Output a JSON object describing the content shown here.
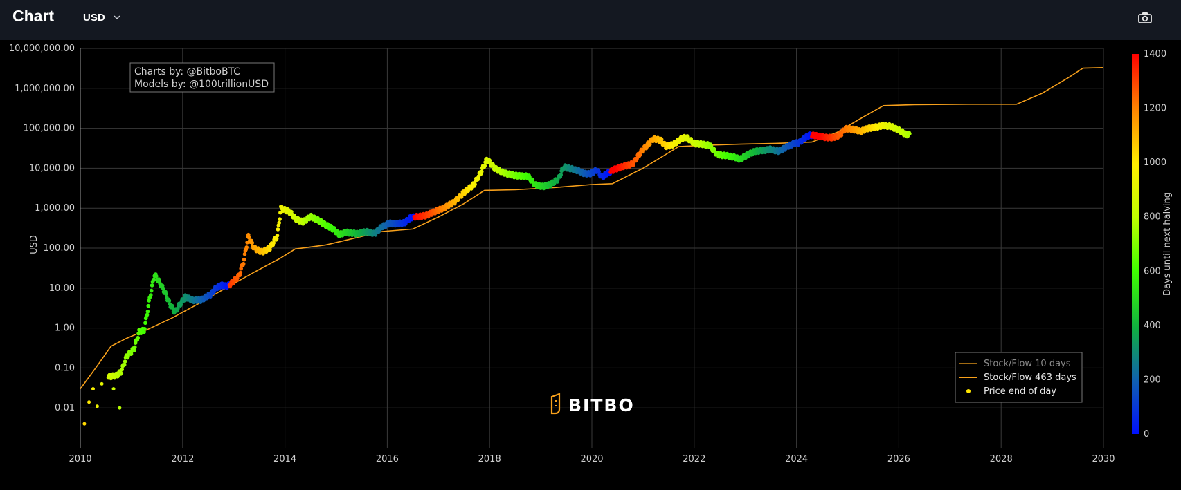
{
  "header": {
    "title": "Chart",
    "currency": "USD",
    "icons": {
      "currency_dropdown": "chevron-down-icon",
      "screenshot": "camera-icon"
    }
  },
  "credits": {
    "line1": "Charts by: @BitboBTC",
    "line2": "Models by: @100trillionUSD"
  },
  "watermark": "BITBO",
  "colors": {
    "background": "#000000",
    "header": "#141821",
    "grid": "#3a3a3a",
    "model_line": "#f7a01b",
    "sf10_line": "#a06a12",
    "marker_yellow": "#ffe600"
  },
  "chart_data": {
    "type": "scatter",
    "ylabel": "USD",
    "xlabel": "",
    "y_scale": "log",
    "ylim": [
      0.001,
      10000000
    ],
    "xlim": [
      2010,
      2030
    ],
    "x_ticks": [
      "2010",
      "2012",
      "2014",
      "2016",
      "2018",
      "2020",
      "2022",
      "2024",
      "2026",
      "2028",
      "2030"
    ],
    "y_ticks": [
      {
        "value": 10000000,
        "label": "10,000,000.00"
      },
      {
        "value": 1000000,
        "label": "1,000,000.00"
      },
      {
        "value": 100000,
        "label": "100,000.00"
      },
      {
        "value": 10000,
        "label": "10,000.00"
      },
      {
        "value": 1000,
        "label": "1,000.00"
      },
      {
        "value": 100,
        "label": "100.00"
      },
      {
        "value": 10,
        "label": "10.00"
      },
      {
        "value": 1,
        "label": "1.00"
      },
      {
        "value": 0.1,
        "label": "0.10"
      },
      {
        "value": 0.01,
        "label": "0.01"
      }
    ],
    "grid": true,
    "legend": {
      "position": "bottom-right",
      "entries": [
        "Stock/Flow 10 days",
        "Stock/Flow 463 days",
        "Price end of day"
      ]
    },
    "colorbar": {
      "label": "Days until next halving",
      "min": 0,
      "max": 1400,
      "ticks": [
        "1400",
        "1200",
        "1000",
        "800",
        "600",
        "400",
        "200",
        "0"
      ]
    },
    "halvings": [
      2012.91,
      2016.52,
      2020.36,
      2024.3,
      2028.29
    ],
    "series": [
      {
        "name": "Stock/Flow 463 days",
        "type": "line",
        "points": [
          [
            2010.0,
            0.03
          ],
          [
            2010.3,
            0.1
          ],
          [
            2010.6,
            0.35
          ],
          [
            2010.9,
            0.55
          ],
          [
            2011.3,
            0.9
          ],
          [
            2011.8,
            1.8
          ],
          [
            2012.3,
            4.0
          ],
          [
            2012.9,
            11
          ],
          [
            2013.4,
            25
          ],
          [
            2013.9,
            55
          ],
          [
            2014.2,
            95
          ],
          [
            2014.8,
            120
          ],
          [
            2015.3,
            170
          ],
          [
            2015.9,
            260
          ],
          [
            2016.5,
            300
          ],
          [
            2017.0,
            600
          ],
          [
            2017.5,
            1300
          ],
          [
            2017.9,
            2800
          ],
          [
            2018.5,
            2900
          ],
          [
            2019.3,
            3300
          ],
          [
            2020.0,
            3900
          ],
          [
            2020.4,
            4100
          ],
          [
            2021.0,
            10000
          ],
          [
            2021.7,
            35000
          ],
          [
            2022.3,
            38000
          ],
          [
            2022.9,
            40000
          ],
          [
            2023.6,
            42000
          ],
          [
            2024.3,
            45000
          ],
          [
            2024.8,
            80000
          ],
          [
            2025.3,
            190000
          ],
          [
            2025.7,
            370000
          ],
          [
            2026.3,
            390000
          ],
          [
            2027.5,
            400000
          ],
          [
            2028.3,
            400000
          ],
          [
            2028.8,
            750000
          ],
          [
            2029.3,
            1800000
          ],
          [
            2029.6,
            3200000
          ],
          [
            2030.0,
            3300000
          ]
        ]
      },
      {
        "name": "Price end of day",
        "type": "scatter",
        "colored_by": "Days until next halving",
        "points": [
          [
            2010.55,
            0.06
          ],
          [
            2010.7,
            0.065
          ],
          [
            2010.8,
            0.08
          ],
          [
            2010.9,
            0.19
          ],
          [
            2011.05,
            0.3
          ],
          [
            2011.15,
            0.8
          ],
          [
            2011.25,
            0.9
          ],
          [
            2011.35,
            5
          ],
          [
            2011.45,
            22
          ],
          [
            2011.55,
            14
          ],
          [
            2011.65,
            8
          ],
          [
            2011.75,
            4
          ],
          [
            2011.85,
            2.5
          ],
          [
            2011.95,
            4
          ],
          [
            2012.05,
            6
          ],
          [
            2012.2,
            5
          ],
          [
            2012.35,
            5
          ],
          [
            2012.55,
            7
          ],
          [
            2012.65,
            10
          ],
          [
            2012.75,
            12
          ],
          [
            2012.85,
            11
          ],
          [
            2012.95,
            13
          ],
          [
            2013.1,
            20
          ],
          [
            2013.2,
            50
          ],
          [
            2013.28,
            200
          ],
          [
            2013.4,
            100
          ],
          [
            2013.55,
            80
          ],
          [
            2013.7,
            100
          ],
          [
            2013.85,
            200
          ],
          [
            2013.92,
            1000
          ],
          [
            2014.1,
            800
          ],
          [
            2014.2,
            550
          ],
          [
            2014.35,
            450
          ],
          [
            2014.5,
            620
          ],
          [
            2014.65,
            500
          ],
          [
            2014.8,
            380
          ],
          [
            2014.95,
            300
          ],
          [
            2015.05,
            220
          ],
          [
            2015.2,
            250
          ],
          [
            2015.4,
            230
          ],
          [
            2015.6,
            260
          ],
          [
            2015.75,
            230
          ],
          [
            2015.9,
            350
          ],
          [
            2016.05,
            420
          ],
          [
            2016.2,
            410
          ],
          [
            2016.35,
            440
          ],
          [
            2016.45,
            580
          ],
          [
            2016.6,
            620
          ],
          [
            2016.75,
            650
          ],
          [
            2016.95,
            850
          ],
          [
            2017.1,
            1000
          ],
          [
            2017.3,
            1400
          ],
          [
            2017.5,
            2500
          ],
          [
            2017.7,
            4000
          ],
          [
            2017.85,
            9000
          ],
          [
            2017.95,
            17000
          ],
          [
            2018.1,
            10000
          ],
          [
            2018.25,
            8000
          ],
          [
            2018.4,
            7000
          ],
          [
            2018.55,
            6500
          ],
          [
            2018.75,
            6300
          ],
          [
            2018.9,
            3800
          ],
          [
            2019.05,
            3500
          ],
          [
            2019.2,
            4000
          ],
          [
            2019.35,
            5500
          ],
          [
            2019.45,
            11000
          ],
          [
            2019.55,
            10000
          ],
          [
            2019.7,
            9000
          ],
          [
            2019.85,
            7500
          ],
          [
            2019.95,
            7200
          ],
          [
            2020.1,
            9000
          ],
          [
            2020.2,
            6000
          ],
          [
            2020.3,
            7500
          ],
          [
            2020.45,
            9500
          ],
          [
            2020.6,
            11000
          ],
          [
            2020.8,
            13000
          ],
          [
            2020.95,
            25000
          ],
          [
            2021.1,
            40000
          ],
          [
            2021.2,
            55000
          ],
          [
            2021.35,
            50000
          ],
          [
            2021.45,
            35000
          ],
          [
            2021.6,
            40000
          ],
          [
            2021.75,
            55000
          ],
          [
            2021.85,
            60000
          ],
          [
            2022.0,
            42000
          ],
          [
            2022.15,
            40000
          ],
          [
            2022.3,
            38000
          ],
          [
            2022.45,
            22000
          ],
          [
            2022.6,
            21000
          ],
          [
            2022.75,
            19500
          ],
          [
            2022.9,
            17000
          ],
          [
            2023.05,
            22000
          ],
          [
            2023.2,
            27000
          ],
          [
            2023.35,
            28000
          ],
          [
            2023.5,
            30000
          ],
          [
            2023.65,
            26500
          ],
          [
            2023.8,
            34000
          ],
          [
            2023.95,
            42000
          ],
          [
            2024.05,
            44000
          ],
          [
            2024.15,
            55000
          ],
          [
            2024.25,
            68000
          ],
          [
            2024.4,
            65000
          ],
          [
            2024.55,
            60000
          ],
          [
            2024.7,
            58000
          ],
          [
            2024.85,
            68000
          ],
          [
            2024.95,
            98000
          ],
          [
            2025.1,
            95000
          ],
          [
            2025.25,
            84000
          ],
          [
            2025.4,
            100000
          ],
          [
            2025.55,
            108000
          ],
          [
            2025.7,
            118000
          ],
          [
            2025.85,
            112000
          ],
          [
            2026.0,
            90000
          ],
          [
            2026.15,
            70000
          ],
          [
            2026.22,
            70000
          ]
        ]
      },
      {
        "name": "Price end of day (early)",
        "type": "scatter",
        "points": [
          [
            2010.08,
            0.004
          ],
          [
            2010.17,
            0.014
          ],
          [
            2010.25,
            0.03
          ],
          [
            2010.33,
            0.011
          ],
          [
            2010.42,
            0.04
          ],
          [
            2010.65,
            0.03
          ],
          [
            2010.77,
            0.01
          ]
        ]
      }
    ]
  }
}
